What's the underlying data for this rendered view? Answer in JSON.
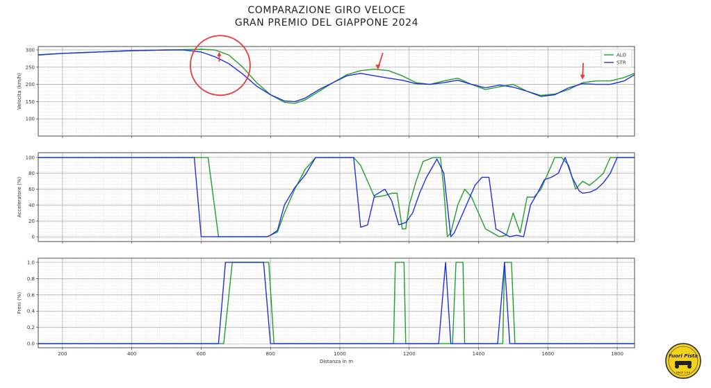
{
  "title": {
    "line1": "COMPARAZIONE GIRO VELOCE",
    "line2": "GRAN PREMIO DEL GIAPPONE 2024"
  },
  "colors": {
    "ALO": "#1f9e2b",
    "STR": "#1f2fe0",
    "annotation": "#e83c3c",
    "logo_bg": "#f5d21a"
  },
  "logo": {
    "line1": "Fuori Pista",
    "line2": "SINCE 2019"
  },
  "chart_data": [
    {
      "type": "line",
      "ylabel": "Velocita (km/h)",
      "xlabel": "",
      "xlim": [
        130,
        1850
      ],
      "ylim": [
        50,
        310
      ],
      "xticks": [
        200,
        400,
        600,
        800,
        1000,
        1200,
        1400,
        1600,
        1800
      ],
      "yticks": [
        100,
        150,
        200,
        250,
        300
      ],
      "legend": {
        "position": "top-right",
        "entries": [
          "ALO",
          "STR"
        ]
      },
      "annotations": [
        {
          "type": "circle",
          "x": 655,
          "y": 255
        },
        {
          "type": "arrow",
          "x": 652,
          "y": 290,
          "direction": "up"
        },
        {
          "type": "arrow",
          "x": 1110,
          "y": 247,
          "direction": "down"
        },
        {
          "type": "arrow",
          "x": 1700,
          "y": 218,
          "direction": "down"
        }
      ],
      "series": [
        {
          "name": "ALO",
          "x": [
            130,
            200,
            300,
            400,
            500,
            600,
            640,
            680,
            720,
            760,
            800,
            840,
            870,
            900,
            940,
            980,
            1020,
            1060,
            1100,
            1140,
            1180,
            1220,
            1260,
            1300,
            1340,
            1380,
            1420,
            1460,
            1500,
            1540,
            1580,
            1620,
            1660,
            1700,
            1740,
            1780,
            1820,
            1850
          ],
          "y": [
            285,
            290,
            294,
            298,
            300,
            302,
            300,
            285,
            250,
            205,
            170,
            148,
            145,
            155,
            180,
            205,
            228,
            240,
            244,
            240,
            225,
            205,
            200,
            210,
            218,
            200,
            185,
            193,
            200,
            180,
            168,
            172,
            185,
            205,
            210,
            210,
            220,
            232
          ]
        },
        {
          "name": "STR",
          "x": [
            130,
            200,
            300,
            400,
            500,
            550,
            600,
            640,
            680,
            720,
            760,
            800,
            840,
            870,
            900,
            940,
            980,
            1020,
            1060,
            1100,
            1140,
            1180,
            1220,
            1260,
            1300,
            1340,
            1380,
            1420,
            1460,
            1500,
            1540,
            1580,
            1620,
            1660,
            1700,
            1740,
            1780,
            1820,
            1850
          ],
          "y": [
            286,
            290,
            294,
            298,
            300,
            300,
            294,
            280,
            260,
            230,
            195,
            170,
            152,
            150,
            160,
            185,
            205,
            225,
            232,
            225,
            218,
            212,
            202,
            200,
            205,
            212,
            200,
            190,
            198,
            192,
            180,
            165,
            170,
            190,
            202,
            200,
            200,
            210,
            228
          ]
        }
      ]
    },
    {
      "type": "line",
      "ylabel": "Acceleratore (%)",
      "xlabel": "",
      "xlim": [
        130,
        1850
      ],
      "ylim": [
        -6,
        106
      ],
      "xticks": [
        200,
        400,
        600,
        800,
        1000,
        1200,
        1400,
        1600,
        1800
      ],
      "yticks": [
        0,
        20,
        40,
        60,
        80,
        100
      ],
      "series": [
        {
          "name": "ALO",
          "x": [
            130,
            560,
            590,
            620,
            650,
            700,
            760,
            790,
            800,
            820,
            840,
            870,
            900,
            930,
            960,
            1000,
            1030,
            1040,
            1060,
            1080,
            1100,
            1130,
            1150,
            1165,
            1180,
            1190,
            1200,
            1220,
            1240,
            1270,
            1290,
            1300,
            1310,
            1320,
            1340,
            1360,
            1380,
            1400,
            1420,
            1440,
            1460,
            1480,
            1500,
            1520,
            1540,
            1560,
            1580,
            1620,
            1640,
            1660,
            1680,
            1700,
            1720,
            1740,
            1760,
            1780,
            1800,
            1820,
            1850
          ],
          "y": [
            100,
            100,
            100,
            100,
            0,
            0,
            0,
            0,
            2,
            6,
            30,
            60,
            85,
            100,
            100,
            100,
            100,
            100,
            90,
            70,
            50,
            52,
            55,
            55,
            10,
            10,
            40,
            70,
            95,
            100,
            100,
            60,
            0,
            5,
            40,
            60,
            50,
            30,
            10,
            5,
            0,
            2,
            30,
            5,
            50,
            50,
            60,
            100,
            100,
            90,
            60,
            70,
            65,
            72,
            80,
            100,
            100,
            100,
            100
          ]
        },
        {
          "name": "STR",
          "x": [
            130,
            560,
            580,
            600,
            640,
            680,
            720,
            760,
            790,
            800,
            820,
            840,
            870,
            900,
            930,
            960,
            1000,
            1020,
            1040,
            1060,
            1080,
            1100,
            1130,
            1150,
            1170,
            1190,
            1210,
            1230,
            1250,
            1280,
            1300,
            1320,
            1330,
            1350,
            1370,
            1390,
            1410,
            1430,
            1450,
            1470,
            1490,
            1510,
            1530,
            1550,
            1570,
            1590,
            1610,
            1630,
            1650,
            1670,
            1690,
            1700,
            1720,
            1740,
            1760,
            1780,
            1800,
            1820,
            1850
          ],
          "y": [
            100,
            100,
            100,
            0,
            0,
            0,
            0,
            0,
            0,
            2,
            8,
            40,
            62,
            78,
            100,
            100,
            100,
            100,
            100,
            12,
            15,
            52,
            60,
            45,
            15,
            18,
            30,
            55,
            75,
            98,
            80,
            0,
            5,
            25,
            45,
            65,
            75,
            75,
            10,
            5,
            0,
            2,
            0,
            40,
            55,
            72,
            75,
            80,
            100,
            75,
            58,
            55,
            56,
            60,
            68,
            80,
            100,
            100,
            100
          ]
        }
      ]
    },
    {
      "type": "line",
      "ylabel": "Freni (%)",
      "xlabel": "Distanza in m",
      "xlim": [
        130,
        1850
      ],
      "ylim": [
        -0.05,
        1.05
      ],
      "xticks": [
        200,
        400,
        600,
        800,
        1000,
        1200,
        1400,
        1600,
        1800
      ],
      "xtick_labels": [
        "200",
        "400",
        "600",
        "800",
        "1000",
        "1200",
        "1400",
        "1600",
        "1800"
      ],
      "yticks": [
        0.0,
        0.2,
        0.4,
        0.6,
        0.8,
        1.0
      ],
      "ytick_labels": [
        "0.0",
        "0.2",
        "0.4",
        "0.6",
        "0.8",
        "1.0"
      ],
      "series": [
        {
          "name": "ALO",
          "x": [
            130,
            650,
            665,
            690,
            780,
            795,
            810,
            815,
            1145,
            1155,
            1160,
            1185,
            1190,
            1195,
            1312,
            1320,
            1325,
            1335,
            1355,
            1360,
            1365,
            1465,
            1470,
            1475,
            1495,
            1505,
            1510,
            1850
          ],
          "y": [
            0,
            0,
            0,
            1,
            1,
            1,
            0,
            0,
            0,
            0,
            1,
            1,
            0,
            0,
            0,
            0,
            0,
            1,
            1,
            0,
            0,
            0,
            0,
            1,
            1,
            0,
            0,
            0
          ]
        },
        {
          "name": "STR",
          "x": [
            130,
            650,
            670,
            780,
            800,
            1285,
            1305,
            1320,
            1455,
            1475,
            1490,
            1850
          ],
          "y": [
            0,
            0,
            1,
            1,
            0,
            0,
            1,
            0,
            0,
            1,
            0,
            0
          ]
        }
      ]
    }
  ]
}
